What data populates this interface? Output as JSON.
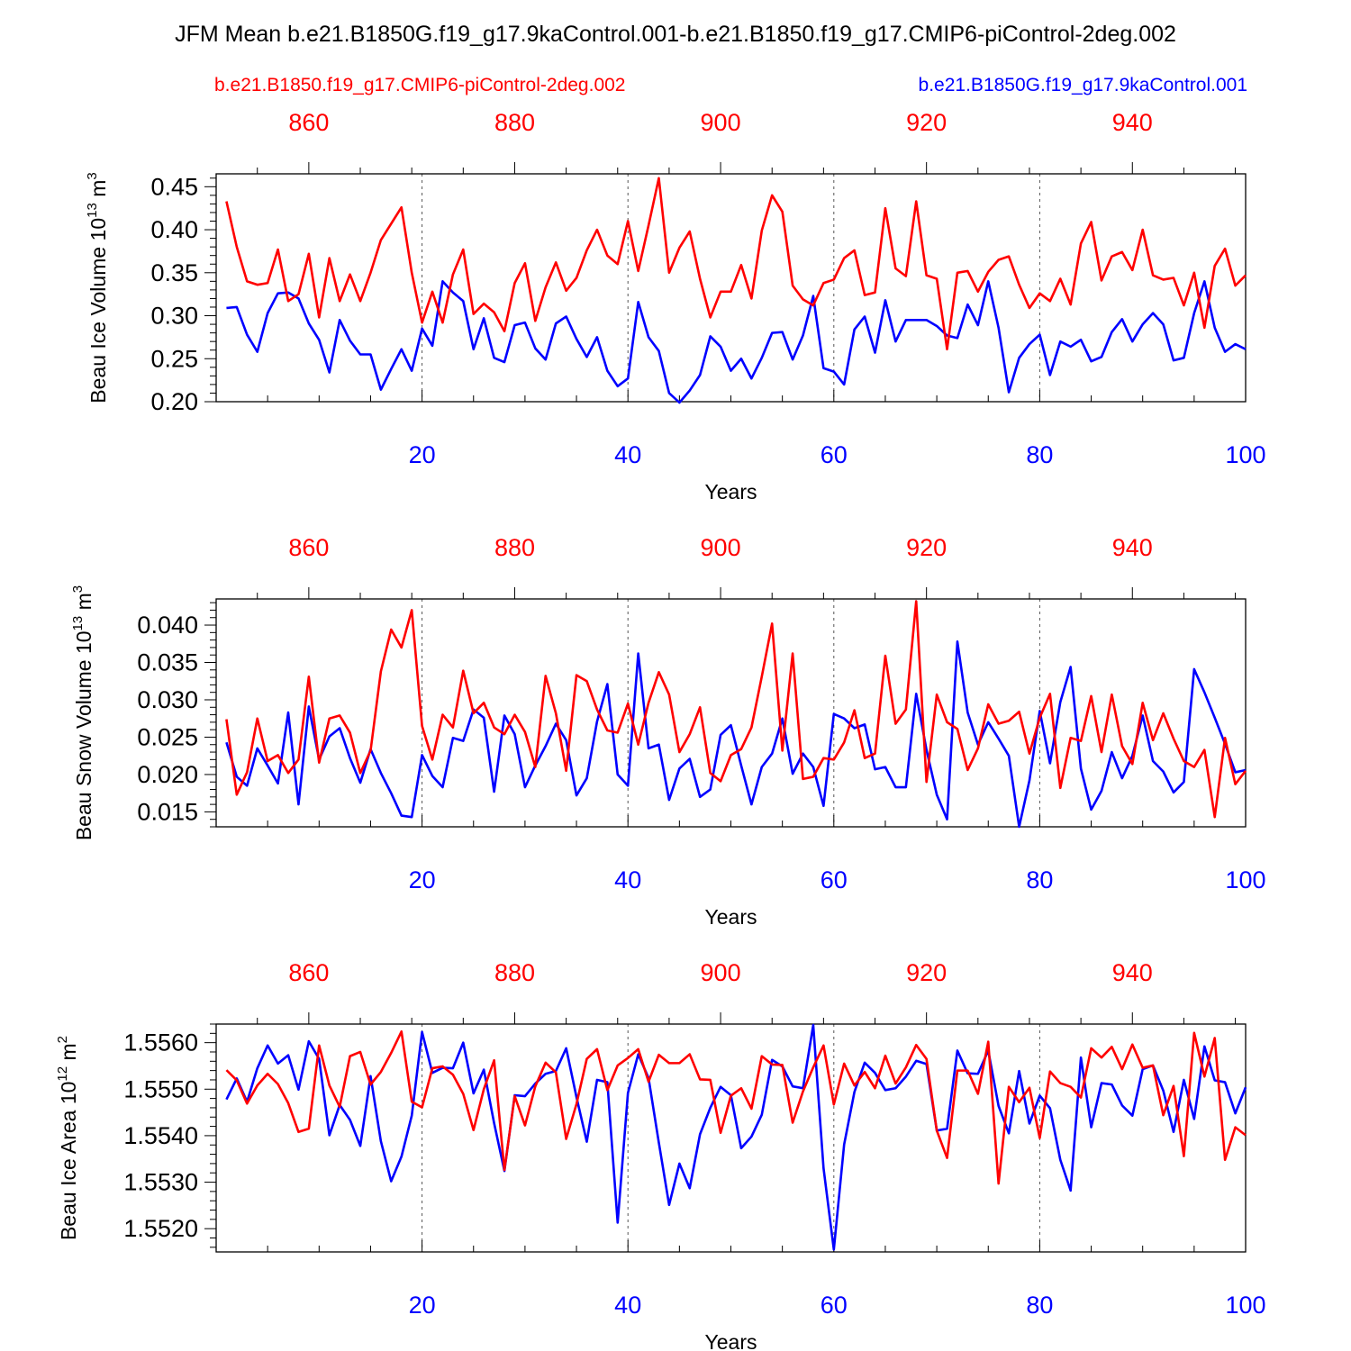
{
  "chart_data": {
    "type": "line",
    "title": "JFM Mean b.e21.B1850G.f19_g17.9kaControl.001-b.e21.B1850.f19_g17.CMIP6-piControl-2deg.002",
    "legend": [
      {
        "name": "b.e21.B1850.f19_g17.CMIP6-piControl-2deg.002",
        "color": "#ff0000",
        "position": "top-left"
      },
      {
        "name": "b.e21.B1850G.f19_g17.9kaControl.001",
        "color": "#0000ff",
        "position": "top-right"
      }
    ],
    "colors": {
      "red": "#ff0000",
      "blue": "#0000ff"
    },
    "x": {
      "label": "Years",
      "range": [
        0,
        100
      ],
      "ticks": [
        "20",
        "40",
        "60",
        "80",
        "100"
      ],
      "tick_values": [
        20,
        40,
        60,
        80,
        100
      ]
    },
    "top_x": {
      "ticks": [
        "860",
        "880",
        "900",
        "920",
        "940"
      ],
      "tick_positions": [
        9,
        29,
        49,
        69,
        89
      ]
    },
    "panels": [
      {
        "ylabel": "Beau Ice Volume 10",
        "ylabel_exp": "13",
        "ylabel_unit": " m",
        "ylabel_unit_exp": "3",
        "ylim": [
          0.2,
          0.465
        ],
        "yticks": [
          0.2,
          0.25,
          0.3,
          0.35,
          0.4,
          0.45
        ],
        "yticklabels": [
          "0.20",
          "0.25",
          "0.30",
          "0.35",
          "0.40",
          "0.45"
        ],
        "series": [
          {
            "name": "b.e21.B1850G.f19_g17.9kaControl.001",
            "color": "#0000ff",
            "values": [
              0.309,
              0.31,
              0.278,
              0.258,
              0.303,
              0.326,
              0.327,
              0.32,
              0.291,
              0.272,
              0.234,
              0.295,
              0.271,
              0.255,
              0.255,
              0.214,
              0.238,
              0.261,
              0.236,
              0.285,
              0.265,
              0.34,
              0.327,
              0.317,
              0.261,
              0.297,
              0.251,
              0.246,
              0.289,
              0.292,
              0.262,
              0.249,
              0.291,
              0.299,
              0.273,
              0.252,
              0.275,
              0.236,
              0.218,
              0.227,
              0.316,
              0.275,
              0.259,
              0.21,
              0.199,
              0.213,
              0.231,
              0.276,
              0.264,
              0.236,
              0.25,
              0.227,
              0.251,
              0.28,
              0.281,
              0.249,
              0.277,
              0.323,
              0.239,
              0.235,
              0.22,
              0.284,
              0.299,
              0.257,
              0.318,
              0.27,
              0.295,
              0.295,
              0.295,
              0.288,
              0.277,
              0.274,
              0.313,
              0.289,
              0.34,
              0.286,
              0.211,
              0.251,
              0.267,
              0.278,
              0.231,
              0.27,
              0.264,
              0.272,
              0.247,
              0.252,
              0.281,
              0.296,
              0.27,
              0.29,
              0.303,
              0.29,
              0.248,
              0.251,
              0.303,
              0.34,
              0.286,
              0.258,
              0.267,
              0.261
            ]
          },
          {
            "name": "b.e21.B1850.f19_g17.CMIP6-piControl-2deg.002",
            "color": "#ff0000",
            "values": [
              0.433,
              0.38,
              0.34,
              0.336,
              0.338,
              0.377,
              0.317,
              0.325,
              0.372,
              0.298,
              0.367,
              0.317,
              0.348,
              0.317,
              0.35,
              0.388,
              0.407,
              0.426,
              0.35,
              0.292,
              0.328,
              0.292,
              0.348,
              0.377,
              0.302,
              0.314,
              0.304,
              0.282,
              0.338,
              0.361,
              0.294,
              0.333,
              0.362,
              0.329,
              0.344,
              0.376,
              0.4,
              0.37,
              0.36,
              0.41,
              0.352,
              0.405,
              0.46,
              0.35,
              0.379,
              0.398,
              0.343,
              0.298,
              0.328,
              0.328,
              0.359,
              0.32,
              0.399,
              0.44,
              0.421,
              0.335,
              0.319,
              0.312,
              0.338,
              0.342,
              0.367,
              0.376,
              0.324,
              0.327,
              0.425,
              0.355,
              0.346,
              0.433,
              0.347,
              0.343,
              0.261,
              0.35,
              0.352,
              0.328,
              0.351,
              0.365,
              0.369,
              0.336,
              0.309,
              0.326,
              0.317,
              0.343,
              0.313,
              0.384,
              0.409,
              0.341,
              0.369,
              0.374,
              0.353,
              0.4,
              0.347,
              0.342,
              0.344,
              0.312,
              0.35,
              0.286,
              0.358,
              0.378,
              0.335,
              0.347
            ]
          }
        ]
      },
      {
        "ylabel": "Beau Snow Volume 10",
        "ylabel_exp": "13",
        "ylabel_unit": " m",
        "ylabel_unit_exp": "3",
        "ylim": [
          0.013,
          0.0435
        ],
        "yticks": [
          0.015,
          0.02,
          0.025,
          0.03,
          0.035,
          0.04
        ],
        "yticklabels": [
          "0.015",
          "0.020",
          "0.025",
          "0.030",
          "0.035",
          "0.040"
        ],
        "series": [
          {
            "name": "b.e21.B1850G.f19_g17.9kaControl.001",
            "color": "#0000ff",
            "values": [
              0.0243,
              0.0197,
              0.0185,
              0.0235,
              0.0212,
              0.0188,
              0.0283,
              0.016,
              0.0291,
              0.022,
              0.0251,
              0.0262,
              0.0222,
              0.0189,
              0.0234,
              0.0202,
              0.0175,
              0.0145,
              0.0143,
              0.0226,
              0.0198,
              0.0183,
              0.0249,
              0.0245,
              0.0287,
              0.0276,
              0.0177,
              0.0279,
              0.0254,
              0.0183,
              0.0212,
              0.0238,
              0.0268,
              0.0246,
              0.0172,
              0.0195,
              0.0271,
              0.0321,
              0.02,
              0.0185,
              0.0362,
              0.0235,
              0.024,
              0.0166,
              0.0208,
              0.0221,
              0.017,
              0.018,
              0.0253,
              0.0266,
              0.0212,
              0.016,
              0.021,
              0.0228,
              0.0275,
              0.0201,
              0.0228,
              0.021,
              0.0158,
              0.0281,
              0.0275,
              0.0262,
              0.0267,
              0.0207,
              0.021,
              0.0183,
              0.0183,
              0.0308,
              0.0233,
              0.0173,
              0.014,
              0.0378,
              0.0283,
              0.024,
              0.027,
              0.0248,
              0.0225,
              0.013,
              0.0192,
              0.0285,
              0.0215,
              0.0297,
              0.0344,
              0.0208,
              0.0153,
              0.0178,
              0.023,
              0.0195,
              0.0225,
              0.0279,
              0.0218,
              0.0204,
              0.0176,
              0.019,
              0.0341,
              0.031,
              0.0276,
              0.0241,
              0.0203,
              0.0206
            ]
          },
          {
            "name": "b.e21.B1850.f19_g17.CMIP6-piControl-2deg.002",
            "color": "#ff0000",
            "values": [
              0.0274,
              0.0173,
              0.0203,
              0.0275,
              0.0218,
              0.0226,
              0.0202,
              0.022,
              0.0331,
              0.0216,
              0.0275,
              0.0279,
              0.0256,
              0.0202,
              0.0232,
              0.0338,
              0.0394,
              0.037,
              0.042,
              0.0265,
              0.022,
              0.028,
              0.0263,
              0.0339,
              0.0282,
              0.0296,
              0.0263,
              0.0254,
              0.028,
              0.0257,
              0.021,
              0.0332,
              0.0282,
              0.0205,
              0.0333,
              0.0325,
              0.0287,
              0.0259,
              0.0256,
              0.0295,
              0.024,
              0.0296,
              0.0337,
              0.0307,
              0.023,
              0.0254,
              0.029,
              0.0202,
              0.0191,
              0.0226,
              0.0234,
              0.0263,
              0.0331,
              0.0402,
              0.0232,
              0.0362,
              0.0194,
              0.0197,
              0.0222,
              0.022,
              0.0243,
              0.0286,
              0.0222,
              0.0228,
              0.0359,
              0.0268,
              0.0287,
              0.0432,
              0.019,
              0.0307,
              0.027,
              0.0261,
              0.0206,
              0.0235,
              0.0294,
              0.0268,
              0.0272,
              0.0284,
              0.0228,
              0.0276,
              0.0308,
              0.0182,
              0.0249,
              0.0245,
              0.0305,
              0.023,
              0.0307,
              0.0238,
              0.0214,
              0.0296,
              0.0246,
              0.0282,
              0.0248,
              0.0218,
              0.021,
              0.0233,
              0.0143,
              0.0249,
              0.0187,
              0.0205
            ]
          }
        ]
      },
      {
        "ylabel": "Beau Ice Area 10",
        "ylabel_exp": "12",
        "ylabel_unit": " m",
        "ylabel_unit_exp": "2",
        "ylim": [
          1.5515,
          1.5564
        ],
        "yticks": [
          1.552,
          1.553,
          1.554,
          1.555,
          1.556
        ],
        "yticklabels": [
          "1.5520",
          "1.5530",
          "1.5540",
          "1.5550",
          "1.5560"
        ],
        "series": [
          {
            "name": "b.e21.B1850G.f19_g17.9kaControl.001",
            "color": "#0000ff",
            "values": [
              1.55478,
              1.55523,
              1.55473,
              1.55545,
              1.55594,
              1.55555,
              1.55573,
              1.55499,
              1.55603,
              1.55565,
              1.55401,
              1.55466,
              1.55434,
              1.55378,
              1.55528,
              1.55388,
              1.55302,
              1.55355,
              1.55443,
              1.55623,
              1.55535,
              1.55546,
              1.55545,
              1.556,
              1.55491,
              1.55542,
              1.55427,
              1.55324,
              1.55487,
              1.55485,
              1.55512,
              1.55533,
              1.55539,
              1.55588,
              1.55483,
              1.55387,
              1.5552,
              1.55515,
              1.55213,
              1.55492,
              1.55575,
              1.55524,
              1.55385,
              1.55251,
              1.5534,
              1.55287,
              1.55403,
              1.5546,
              1.55505,
              1.55487,
              1.55373,
              1.55398,
              1.55445,
              1.55563,
              1.55549,
              1.55506,
              1.55502,
              1.55638,
              1.5533,
              1.55155,
              1.55381,
              1.55494,
              1.55557,
              1.55535,
              1.55498,
              1.55502,
              1.55527,
              1.55561,
              1.55554,
              1.55411,
              1.55415,
              1.55583,
              1.55534,
              1.55533,
              1.55583,
              1.55464,
              1.55405,
              1.55539,
              1.55426,
              1.55486,
              1.55459,
              1.55348,
              1.55282,
              1.55568,
              1.55418,
              1.55513,
              1.5551,
              1.55465,
              1.55443,
              1.55543,
              1.55551,
              1.55497,
              1.55408,
              1.5552,
              1.55436,
              1.55592,
              1.55519,
              1.55515,
              1.55448,
              1.55504
            ]
          },
          {
            "name": "b.e21.B1850.f19_g17.CMIP6-piControl-2deg.002",
            "color": "#ff0000",
            "values": [
              1.55541,
              1.55519,
              1.55469,
              1.55508,
              1.55533,
              1.55511,
              1.5547,
              1.55408,
              1.55415,
              1.55594,
              1.55508,
              1.55462,
              1.55571,
              1.5558,
              1.5551,
              1.55537,
              1.55578,
              1.55624,
              1.55473,
              1.55461,
              1.55545,
              1.55549,
              1.55531,
              1.5549,
              1.55412,
              1.555,
              1.55562,
              1.55326,
              1.55485,
              1.55422,
              1.55506,
              1.55557,
              1.55536,
              1.55393,
              1.55468,
              1.55565,
              1.55586,
              1.55498,
              1.55551,
              1.55567,
              1.55586,
              1.55516,
              1.55574,
              1.55556,
              1.55556,
              1.55575,
              1.55521,
              1.5552,
              1.55406,
              1.55486,
              1.55502,
              1.55458,
              1.55571,
              1.55553,
              1.55552,
              1.55428,
              1.55495,
              1.55547,
              1.55594,
              1.55467,
              1.55555,
              1.55508,
              1.55537,
              1.55502,
              1.55572,
              1.55512,
              1.55547,
              1.55595,
              1.55565,
              1.55411,
              1.55352,
              1.5554,
              1.5554,
              1.5549,
              1.55602,
              1.55297,
              1.55505,
              1.55472,
              1.55503,
              1.55395,
              1.55538,
              1.55513,
              1.55505,
              1.55482,
              1.55588,
              1.55568,
              1.55591,
              1.55543,
              1.55596,
              1.55546,
              1.55551,
              1.55444,
              1.55507,
              1.55356,
              1.55621,
              1.55527,
              1.5561,
              1.55348,
              1.55418,
              1.55401
            ]
          }
        ]
      }
    ]
  }
}
